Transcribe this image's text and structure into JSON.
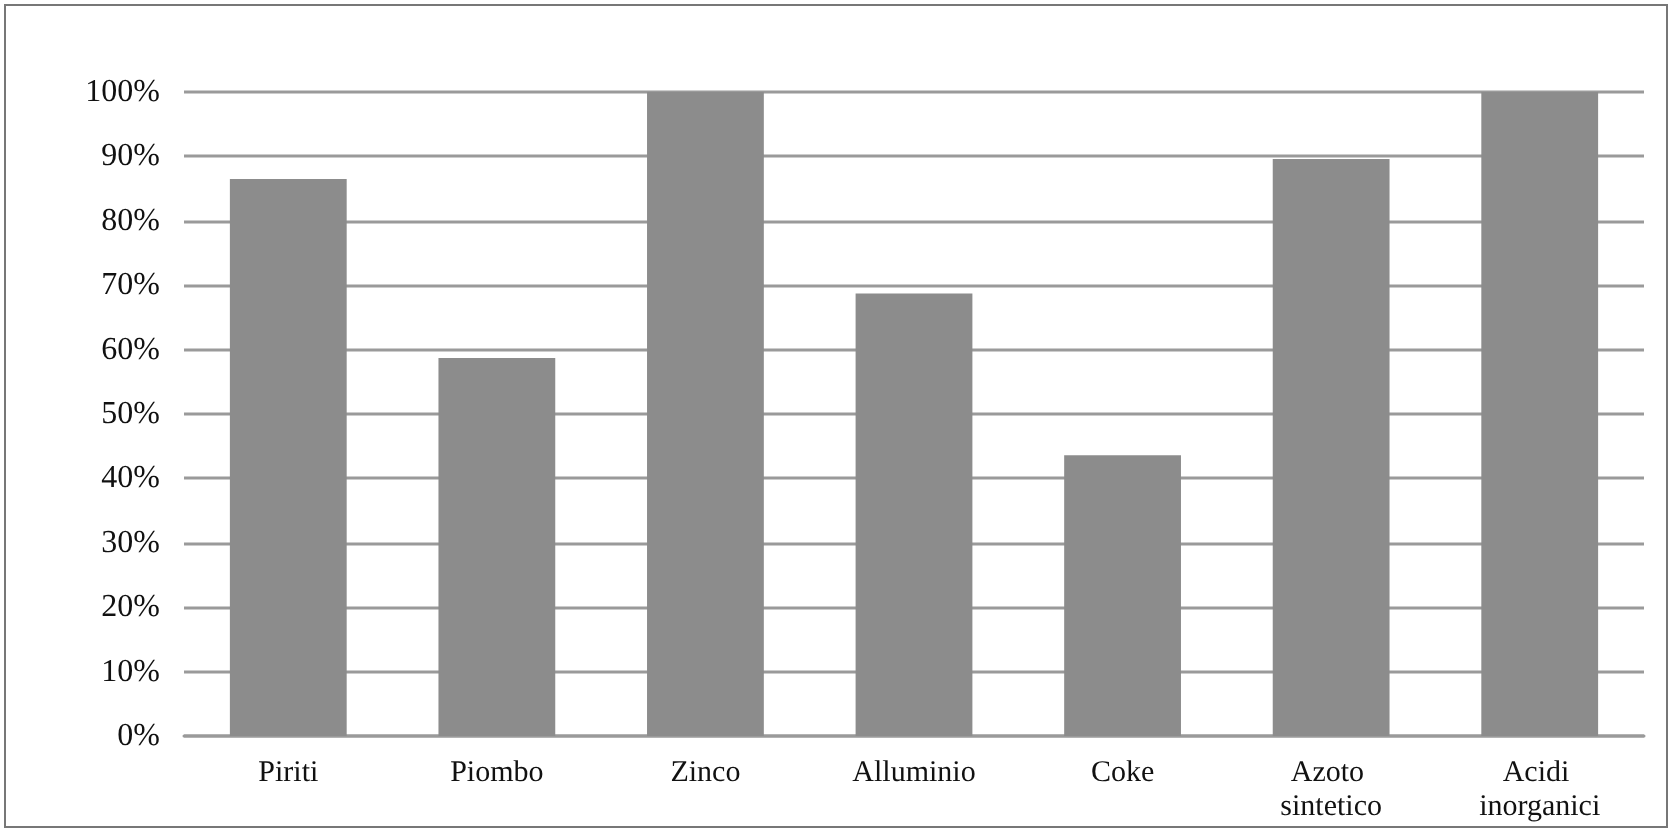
{
  "chart_data": {
    "type": "bar",
    "categories": [
      "Piriti",
      "Piombo",
      "Zinco",
      "Alluminio",
      "Coke",
      "Azoto sintetico",
      "Acidi inorganici"
    ],
    "values": [
      86.5,
      58.7,
      100,
      68.7,
      43.6,
      89.6,
      100
    ],
    "color": "#8c8c8c",
    "ylim": [
      0,
      100
    ],
    "yticks": [
      {
        "value": 0,
        "label": "0%"
      },
      {
        "value": 10,
        "label": "10%"
      },
      {
        "value": 20,
        "label": "20%"
      },
      {
        "value": 30,
        "label": "30%"
      },
      {
        "value": 40,
        "label": "40%"
      },
      {
        "value": 50,
        "label": "50%"
      },
      {
        "value": 60,
        "label": "60%"
      },
      {
        "value": 70,
        "label": "70%"
      },
      {
        "value": 80,
        "label": "80%"
      },
      {
        "value": 90,
        "label": "90%"
      },
      {
        "value": 100,
        "label": "100%"
      }
    ],
    "grid": "y"
  }
}
